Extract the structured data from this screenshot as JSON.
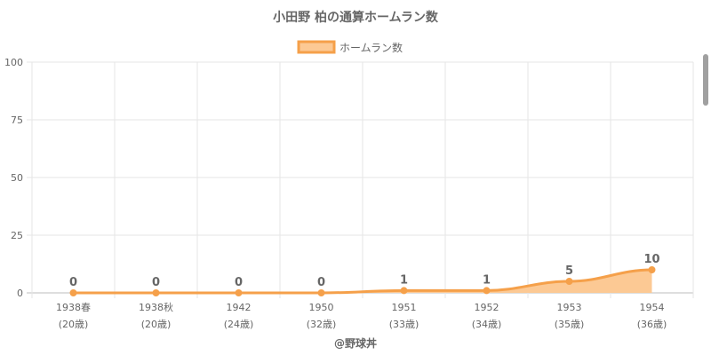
{
  "chart_data": {
    "type": "area",
    "title": "小田野 柏の通算ホームラン数",
    "legend": "ホームラン数",
    "legend_position": "top-center",
    "categories": [
      [
        "1938春",
        "(20歳)"
      ],
      [
        "1938秋",
        "(20歳)"
      ],
      [
        "1942",
        "(24歳)"
      ],
      [
        "1950",
        "(32歳)"
      ],
      [
        "1951",
        "(33歳)"
      ],
      [
        "1952",
        "(34歳)"
      ],
      [
        "1953",
        "(35歳)"
      ],
      [
        "1954",
        "(36歳)"
      ]
    ],
    "values": [
      0,
      0,
      0,
      0,
      1,
      1,
      5,
      10
    ],
    "ylim": [
      0,
      100
    ],
    "yticks": [
      0,
      25,
      50,
      75,
      100
    ],
    "grid": true,
    "line_color": "#f5a04a",
    "fill_color": "#fcc994",
    "credit": "@野球丼"
  }
}
